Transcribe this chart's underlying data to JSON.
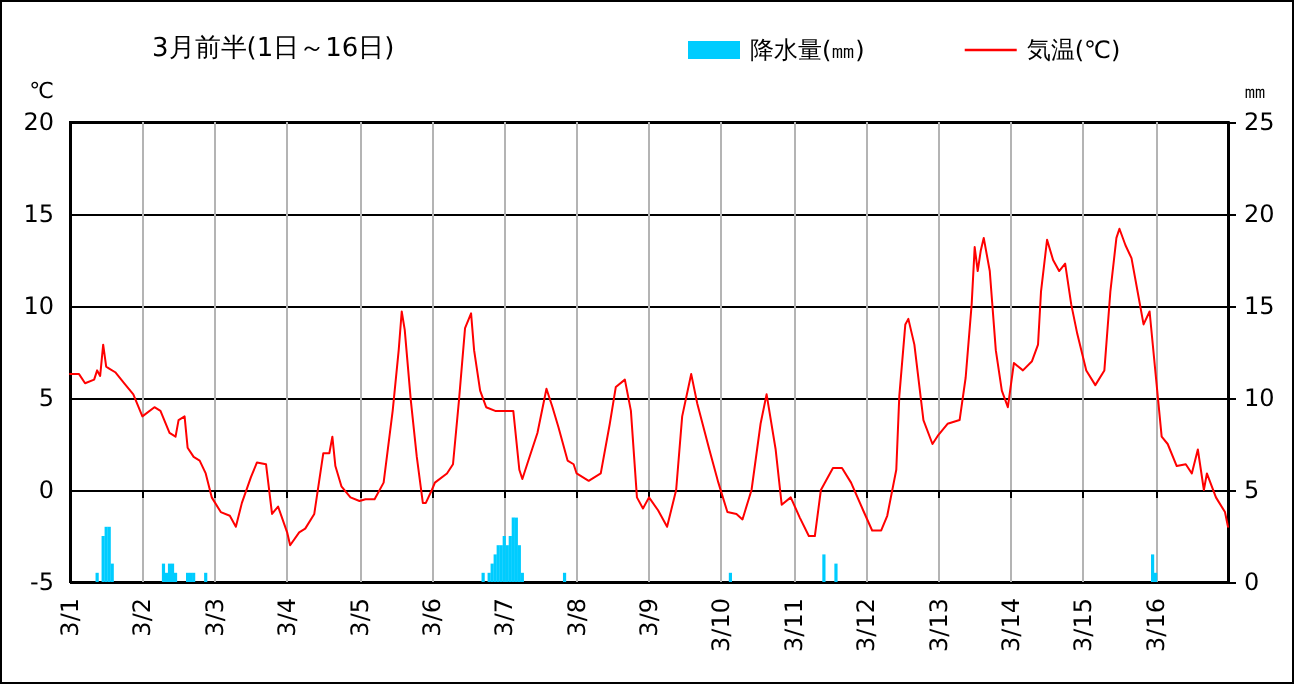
{
  "chart_data": {
    "type": "line",
    "title": "3月前半(1日～16日)",
    "ylabel": "℃",
    "y2label": "㎜",
    "xlim": [
      "--03-01",
      "--03-17"
    ],
    "xticks": [
      {
        "value": "--03-01",
        "label": "3/1"
      },
      {
        "value": "--03-02",
        "label": "3/2"
      },
      {
        "value": "--03-03",
        "label": "3/3"
      },
      {
        "value": "--03-04",
        "label": "3/4"
      },
      {
        "value": "--03-05",
        "label": "3/5"
      },
      {
        "value": "--03-06",
        "label": "3/6"
      },
      {
        "value": "--03-07",
        "label": "3/7"
      },
      {
        "value": "--03-08",
        "label": "3/8"
      },
      {
        "value": "--03-09",
        "label": "3/9"
      },
      {
        "value": "--03-10",
        "label": "3/10"
      },
      {
        "value": "--03-11",
        "label": "3/11"
      },
      {
        "value": "--03-12",
        "label": "3/12"
      },
      {
        "value": "--03-13",
        "label": "3/13"
      },
      {
        "value": "--03-14",
        "label": "3/14"
      },
      {
        "value": "--03-15",
        "label": "3/15"
      },
      {
        "value": "--03-16",
        "label": "3/16"
      }
    ],
    "ylim": [
      -5,
      20
    ],
    "yticks": [
      -5,
      0,
      5,
      10,
      15,
      20
    ],
    "y2lim": [
      0,
      25
    ],
    "y2ticks": [
      0,
      5,
      10,
      15,
      20,
      25
    ],
    "grid": true,
    "legend": "top right",
    "marker": "none",
    "line_style": "solid",
    "series": [
      {
        "name": "降水量(㎜)",
        "type": "bar",
        "axis": "y2",
        "color": "#00ccff",
        "x": [
          "--03-01T09:00",
          "--03-01T11:00",
          "--03-01T12:00",
          "--03-01T13:00",
          "--03-01T14:00",
          "--03-02T07:00",
          "--03-02T08:00",
          "--03-02T09:00",
          "--03-02T10:00",
          "--03-02T11:00",
          "--03-02T15:00",
          "--03-02T16:00",
          "--03-02T17:00",
          "--03-02T21:00",
          "--03-06T17:00",
          "--03-06T19:00",
          "--03-06T20:00",
          "--03-06T21:00",
          "--03-06T22:00",
          "--03-06T23:00",
          "--03-07T00:00",
          "--03-07T01:00",
          "--03-07T02:00",
          "--03-07T03:00",
          "--03-07T04:00",
          "--03-07T05:00",
          "--03-07T06:00",
          "--03-07T20:00",
          "--03-10T03:00",
          "--03-11T10:00",
          "--03-11T14:00",
          "--03-15T23:00",
          "--03-16T00:00"
        ],
        "values": [
          0.5,
          2.5,
          3.0,
          3.0,
          1.0,
          1.0,
          0.5,
          1.0,
          1.0,
          0.5,
          0.5,
          0.5,
          0.5,
          0.5,
          0.5,
          0.5,
          1.0,
          1.5,
          2.0,
          2.0,
          2.5,
          2.0,
          2.5,
          3.5,
          3.5,
          2.0,
          0.5,
          0.5,
          0.5,
          1.5,
          1.0,
          1.5,
          0.5
        ]
      },
      {
        "name": "気温(℃)",
        "color": "#ff0000",
        "x": [
          "--03-01T00:00",
          "--03-01T03:00",
          "--03-01T05:00",
          "--03-01T08:00",
          "--03-01T09:00",
          "--03-01T10:00",
          "--03-01T11:00",
          "--03-01T12:00",
          "--03-01T13:00",
          "--03-01T15:00",
          "--03-01T18:00",
          "--03-01T21:00",
          "--03-02T00:00",
          "--03-02T04:00",
          "--03-02T06:00",
          "--03-02T09:00",
          "--03-02T11:00",
          "--03-02T12:00",
          "--03-02T14:00",
          "--03-02T15:00",
          "--03-02T17:00",
          "--03-02T19:00",
          "--03-02T21:00",
          "--03-02T23:00",
          "--03-03T02:00",
          "--03-03T05:00",
          "--03-03T07:00",
          "--03-03T09:00",
          "--03-03T12:00",
          "--03-03T14:00",
          "--03-03T17:00",
          "--03-03T19:00",
          "--03-03T21:00",
          "--03-04T00:00",
          "--03-04T01:00",
          "--03-04T04:00",
          "--03-04T06:00",
          "--03-04T09:00",
          "--03-04T12:00",
          "--03-04T14:00",
          "--03-04T15:00",
          "--03-04T16:00",
          "--03-04T18:00",
          "--03-04T21:00",
          "--03-05T00:00",
          "--03-05T02:00",
          "--03-05T05:00",
          "--03-05T08:00",
          "--03-05T11:00",
          "--03-05T13:00",
          "--03-05T14:00",
          "--03-05T15:00",
          "--03-05T17:00",
          "--03-05T19:00",
          "--03-05T21:00",
          "--03-05T22:00",
          "--03-06T00:00",
          "--03-06T01:00",
          "--03-06T05:00",
          "--03-06T07:00",
          "--03-06T09:00",
          "--03-06T11:00",
          "--03-06T13:00",
          "--03-06T14:00",
          "--03-06T16:00",
          "--03-06T18:00",
          "--03-06T21:00",
          "--03-07T03:00",
          "--03-07T05:00",
          "--03-07T06:00",
          "--03-07T08:00",
          "--03-07T11:00",
          "--03-07T14:00",
          "--03-07T16:00",
          "--03-07T18:00",
          "--03-07T21:00",
          "--03-07T23:00",
          "--03-08T00:00",
          "--03-08T04:00",
          "--03-08T08:00",
          "--03-08T11:00",
          "--03-08T13:00",
          "--03-08T16:00",
          "--03-08T18:00",
          "--03-08T20:00",
          "--03-08T22:00",
          "--03-09T00:00",
          "--03-09T03:00",
          "--03-09T06:00",
          "--03-09T09:00",
          "--03-09T11:00",
          "--03-09T14:00",
          "--03-09T16:00",
          "--03-09T20:00",
          "--03-09T23:00",
          "--03-10T02:00",
          "--03-10T05:00",
          "--03-10T07:00",
          "--03-10T10:00",
          "--03-10T13:00",
          "--03-10T15:00",
          "--03-10T18:00",
          "--03-10T20:00",
          "--03-10T23:00",
          "--03-11T02:00",
          "--03-11T05:00",
          "--03-11T07:00",
          "--03-11T09:00",
          "--03-11T13:00",
          "--03-11T16:00",
          "--03-11T19:00",
          "--03-11T23:00",
          "--03-12T02:00",
          "--03-12T05:00",
          "--03-12T07:00",
          "--03-12T10:00",
          "--03-12T11:00",
          "--03-12T13:00",
          "--03-12T14:00",
          "--03-12T16:00",
          "--03-12T19:00",
          "--03-12T22:00",
          "--03-13T00:00",
          "--03-13T03:00",
          "--03-13T07:00",
          "--03-13T09:00",
          "--03-13T11:00",
          "--03-13T12:00",
          "--03-13T13:00",
          "--03-13T14:00",
          "--03-13T15:00",
          "--03-13T17:00",
          "--03-13T19:00",
          "--03-13T21:00",
          "--03-13T23:00",
          "--03-14T01:00",
          "--03-14T04:00",
          "--03-14T07:00",
          "--03-14T09:00",
          "--03-14T10:00",
          "--03-14T12:00",
          "--03-14T14:00",
          "--03-14T16:00",
          "--03-14T18:00",
          "--03-14T20:00",
          "--03-14T22:00",
          "--03-15T01:00",
          "--03-15T04:00",
          "--03-15T07:00",
          "--03-15T09:00",
          "--03-15T11:00",
          "--03-15T12:00",
          "--03-15T14:00",
          "--03-15T16:00",
          "--03-15T18:00",
          "--03-15T20:00",
          "--03-15T22:00",
          "--03-16T00:00",
          "--03-16T02:00",
          "--03-16T04:00",
          "--03-16T07:00",
          "--03-16T10:00",
          "--03-16T12:00",
          "--03-16T14:00",
          "--03-16T16:00",
          "--03-16T17:00",
          "--03-16T20:00",
          "--03-16T23:00",
          "--03-17T00:00"
        ],
        "values": [
          6.3,
          6.3,
          5.8,
          6.0,
          6.5,
          6.2,
          7.9,
          6.7,
          6.6,
          6.4,
          5.8,
          5.2,
          4.0,
          4.5,
          4.3,
          3.1,
          2.9,
          3.8,
          4.0,
          2.3,
          1.8,
          1.6,
          0.9,
          -0.4,
          -1.2,
          -1.4,
          -2.0,
          -0.7,
          0.7,
          1.5,
          1.4,
          -1.3,
          -0.9,
          -2.3,
          -3.0,
          -2.3,
          -2.1,
          -1.3,
          2.0,
          2.0,
          2.9,
          1.3,
          0.2,
          -0.4,
          -0.6,
          -0.5,
          -0.5,
          0.4,
          4.3,
          7.6,
          9.7,
          8.7,
          4.9,
          1.8,
          -0.7,
          -0.7,
          0,
          0.4,
          0.9,
          1.4,
          4.9,
          8.8,
          9.6,
          7.6,
          5.4,
          4.5,
          4.3,
          4.3,
          1.1,
          0.6,
          1.6,
          3.1,
          5.5,
          4.5,
          3.4,
          1.6,
          1.4,
          0.9,
          0.5,
          0.9,
          3.6,
          5.6,
          6.0,
          4.3,
          -0.4,
          -1.0,
          -0.4,
          -1.1,
          -2.0,
          0,
          4.0,
          6.3,
          4.7,
          2.2,
          0.4,
          -1.2,
          -1.3,
          -1.6,
          0,
          3.6,
          5.2,
          2.2,
          -0.8,
          -0.4,
          -1.5,
          -2.5,
          -2.5,
          0,
          1.2,
          1.2,
          0.4,
          -1.1,
          -2.2,
          -2.2,
          -1.4,
          1.1,
          5.1,
          9.0,
          9.3,
          7.9,
          3.8,
          2.5,
          3.0,
          3.6,
          3.8,
          6.1,
          10.1,
          13.2,
          11.9,
          13.0,
          13.7,
          11.9,
          7.6,
          5.4,
          4.5,
          6.9,
          6.5,
          7.0,
          7.9,
          10.8,
          13.6,
          12.5,
          11.9,
          12.3,
          10.1,
          8.5,
          6.5,
          5.7,
          6.5,
          10.8,
          13.7,
          14.2,
          13.3,
          12.6,
          10.8,
          9.0,
          9.7,
          6.3,
          2.9,
          2.5,
          1.3,
          1.4,
          0.9,
          2.2,
          0,
          0.9,
          -0.4,
          -1.2,
          -2.0
        ]
      }
    ]
  }
}
